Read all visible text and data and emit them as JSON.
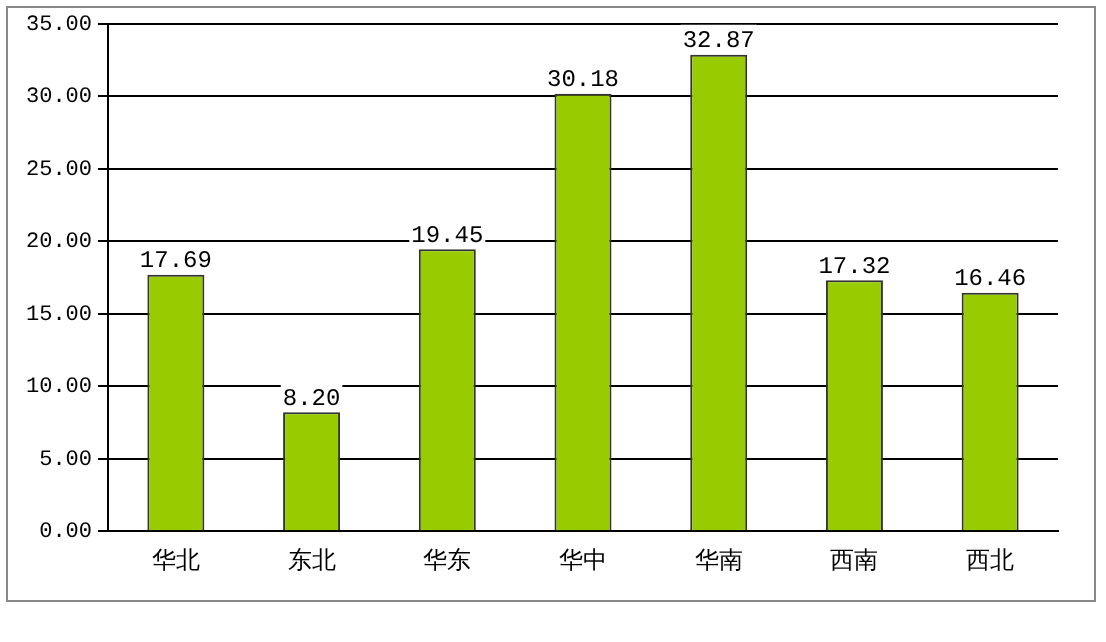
{
  "chart_data": {
    "type": "bar",
    "categories": [
      "华北",
      "东北",
      "华东",
      "华中",
      "华南",
      "西南",
      "西北"
    ],
    "values": [
      17.69,
      8.2,
      19.45,
      30.18,
      32.87,
      17.32,
      16.46
    ],
    "value_labels": [
      "17.69",
      "8.20",
      "19.45",
      "30.18",
      "32.87",
      "17.32",
      "16.46"
    ],
    "color": "#99cc00",
    "ylim": [
      0,
      35
    ],
    "yticks": [
      {
        "value": 0,
        "label": "0.00"
      },
      {
        "value": 5,
        "label": "5.00"
      },
      {
        "value": 10,
        "label": "10.00"
      },
      {
        "value": 15,
        "label": "15.00"
      },
      {
        "value": 20,
        "label": "20.00"
      },
      {
        "value": 25,
        "label": "25.00"
      },
      {
        "value": 30,
        "label": "30.00"
      },
      {
        "value": 35,
        "label": "35.00"
      }
    ],
    "grid": "y",
    "legend": false
  }
}
